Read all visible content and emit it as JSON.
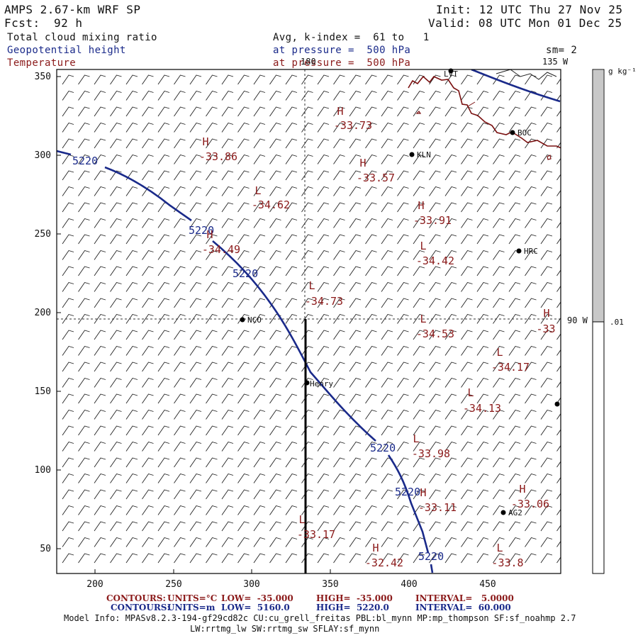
{
  "header": {
    "model": "AMPS 2.67-km WRF SP",
    "fcst_label": "Fcst:",
    "fcst_value": "92 h",
    "init": "Init: 12 UTC Thu 27 Nov 25",
    "valid": "Valid: 08 UTC Mon 01 Dec 25",
    "field_1": "Total cloud mixing ratio",
    "field_2": "Geopotential height",
    "field_3": "Temperature",
    "avg": "Avg, k-index =  61 to   1",
    "pressure_1": "at pressure =  500 hPa",
    "pressure_2": "at pressure =  500 hPa",
    "smoothing": "sm= 2",
    "lon_135": "135 W",
    "lon_180": "180",
    "lon_90": "90 W"
  },
  "colorbar": {
    "units": "g kg⁻¹",
    "level": ".01",
    "fill_color": "#c8c8c8"
  },
  "axes": {
    "x_ticks": [
      "200",
      "250",
      "300",
      "350",
      "400",
      "450"
    ],
    "y_ticks": [
      "350",
      "300",
      "250",
      "200",
      "150",
      "100",
      "50"
    ]
  },
  "stations": [
    "LVT",
    "BOC",
    "KLN",
    "HRC",
    "NCO",
    "Henry",
    "AG2"
  ],
  "height_labels": [
    "5220",
    "5220",
    "5220",
    "5220",
    "5220",
    "5220"
  ],
  "pressure_centers": [
    {
      "type": "H",
      "value": "-33.73"
    },
    {
      "type": "H",
      "value": "-33.86"
    },
    {
      "type": "H",
      "value": "-33.57"
    },
    {
      "type": "L",
      "value": "-34.62"
    },
    {
      "type": "H",
      "value": "-33.91"
    },
    {
      "type": "H",
      "value": "-34.49"
    },
    {
      "type": "L",
      "value": "-34.42"
    },
    {
      "type": "L",
      "value": "-34.73"
    },
    {
      "type": "L",
      "value": "-34.53"
    },
    {
      "type": "H",
      "value": "-33"
    },
    {
      "type": "L",
      "value": "-34.17"
    },
    {
      "type": "L",
      "value": "-34.13"
    },
    {
      "type": "L",
      "value": "-33.98"
    },
    {
      "type": "H",
      "value": "-33.11"
    },
    {
      "type": "H",
      "value": "-33.06"
    },
    {
      "type": "L",
      "value": "-33.17"
    },
    {
      "type": "H",
      "value": "-32.42"
    },
    {
      "type": "L",
      "value": "-33.8"
    }
  ],
  "footer": {
    "c1_label": "CONTOURS:",
    "c1_units": "UNITS=°C",
    "c1_low": "LOW=  -35.000",
    "c1_high": "HIGH=  -35.000",
    "c1_interval": "INTERVAL=   5.0000",
    "c2_label": "CONTOURS:",
    "c2_units": "UNITS=m",
    "c2_low": "LOW=  5160.0",
    "c2_high": "HIGH=  5220.0",
    "c2_interval": "INTERVAL=  60.000",
    "model_info": "Model Info: MPASv8.2.3-194-gf29cd82c CU:cu_grell_freitas PBL:bl_mynn MP:mp_thompson SF:sf_noahmp 2.7",
    "model_info_2": "LW:rrtmg_lw SW:rrtmg_sw SFLAY:sf_mynn"
  },
  "colors": {
    "height_contour": "#1a2a8a",
    "temperature": "#8b1a1a",
    "coast": "#7a1010"
  }
}
